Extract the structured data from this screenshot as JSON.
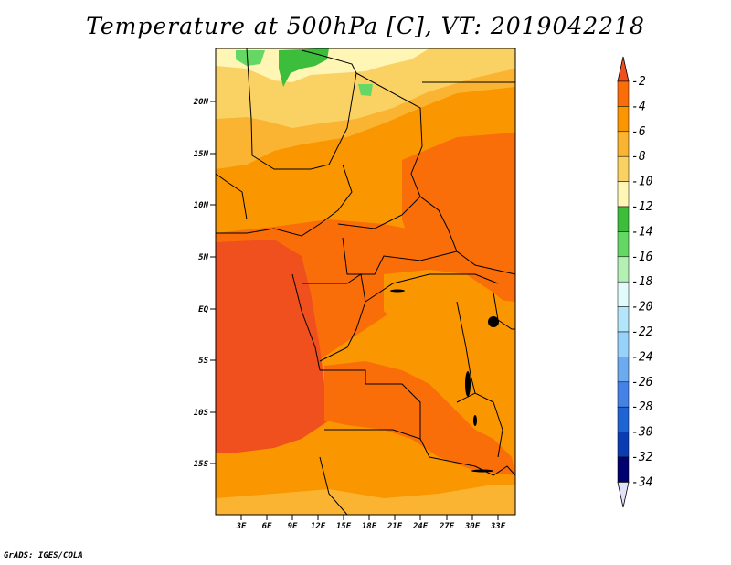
{
  "title": "Temperature at 500hPa [C], VT: 2019042218",
  "credit": "GrADS: IGES/COLA",
  "map": {
    "lat_labels": [
      "20N",
      "15N",
      "10N",
      "5N",
      "EQ",
      "5S",
      "10S",
      "15S"
    ],
    "lon_labels": [
      "3E",
      "6E",
      "9E",
      "12E",
      "15E",
      "18E",
      "21E",
      "24E",
      "27E",
      "30E",
      "33E"
    ]
  },
  "colorbar": {
    "labels": [
      "-2",
      "-4",
      "-6",
      "-8",
      "-10",
      "-12",
      "-14",
      "-16",
      "-18",
      "-20",
      "-22",
      "-24",
      "-26",
      "-28",
      "-30",
      "-32",
      "-34"
    ],
    "colors": [
      "#f0501e",
      "#fa6e0a",
      "#fa9600",
      "#fab432",
      "#fad264",
      "#fff5b4",
      "#3cbe3c",
      "#64d764",
      "#b4f0b4",
      "#e1fafa",
      "#b4e6fa",
      "#96d2fa",
      "#6eaaf0",
      "#4682e6",
      "#1e64d2",
      "#0a3cb4",
      "#0a1496",
      "#00006e",
      "#e1e1fa"
    ]
  },
  "colors": {
    "deep_orange": "#f0501e",
    "orange_red": "#fa6e0a",
    "orange": "#fa9600",
    "light_orange": "#fab432",
    "yellow": "#fad264",
    "pale_yellow": "#fff5b4",
    "green": "#3cbe3c",
    "light_green": "#64d764"
  }
}
